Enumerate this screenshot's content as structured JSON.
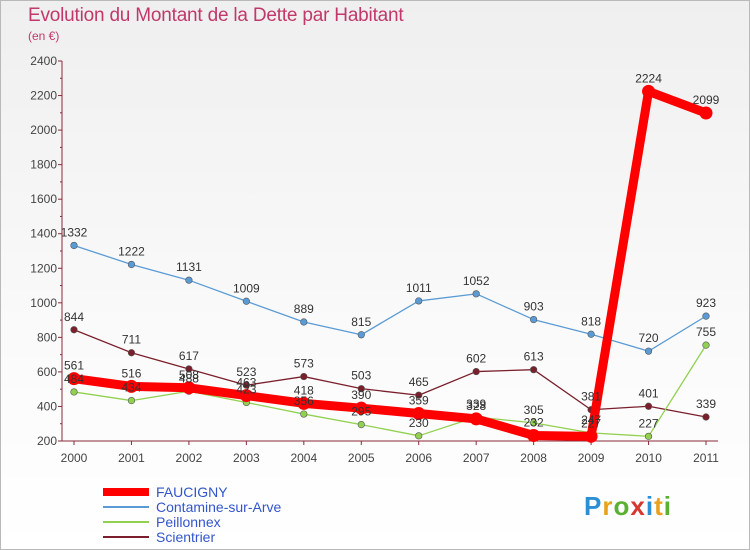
{
  "title": "Evolution du Montant de la Dette par Habitant",
  "subtitle": "(en €)",
  "brand": {
    "text": "Proxiti"
  },
  "chart_data": {
    "type": "line",
    "title": "Evolution du Montant de la Dette par Habitant",
    "subtitle": "(en €)",
    "x": [
      "2000",
      "2001",
      "2002",
      "2003",
      "2004",
      "2005",
      "2006",
      "2007",
      "2008",
      "2009",
      "2010",
      "2011"
    ],
    "ylim": [
      200,
      2400
    ],
    "yticks": [
      200,
      400,
      600,
      800,
      1000,
      1200,
      1400,
      1600,
      1800,
      2000,
      2200,
      2400
    ],
    "grid": false,
    "legend": "bottom-left",
    "series": [
      {
        "name": "Contamine-sur-Arve",
        "color": "#5b9bd5",
        "values": [
          1332,
          1222,
          1131,
          1009,
          889,
          815,
          1011,
          1052,
          903,
          818,
          720,
          923
        ],
        "labels": [
          "1332",
          "1222",
          "1131",
          "1009",
          "889",
          "815",
          "1011",
          "1052",
          "903",
          "818",
          "720",
          "923"
        ]
      },
      {
        "name": "Scientrier",
        "color": "#7a1f2b",
        "values": [
          844,
          711,
          617,
          523,
          573,
          503,
          465,
          602,
          613,
          381,
          401,
          339
        ],
        "labels": [
          "844",
          "711",
          "617",
          "523",
          "573",
          "503",
          "465",
          "602",
          "613",
          "381",
          "401",
          "339"
        ]
      },
      {
        "name": "Peillonnex",
        "color": "#92d050",
        "values": [
          484,
          434,
          488,
          423,
          356,
          295,
          230,
          339,
          305,
          247,
          227,
          755
        ],
        "labels": [
          "484",
          "434",
          "488",
          "423",
          "356",
          "295",
          "230",
          "339",
          "305",
          "247",
          "227",
          "755"
        ]
      },
      {
        "name": "FAUCIGNY",
        "color": "#ff0000",
        "values": [
          561,
          516,
          508,
          463,
          418,
          390,
          359,
          328,
          232,
          227,
          2224,
          2099
        ],
        "labels": [
          "561",
          "516",
          "508",
          "463",
          "418",
          "390",
          "359",
          "328",
          "232",
          "227",
          "2224",
          "2099"
        ]
      }
    ],
    "legend_order": [
      "FAUCIGNY",
      "Contamine-sur-Arve",
      "Peillonnex",
      "Scientrier"
    ]
  }
}
